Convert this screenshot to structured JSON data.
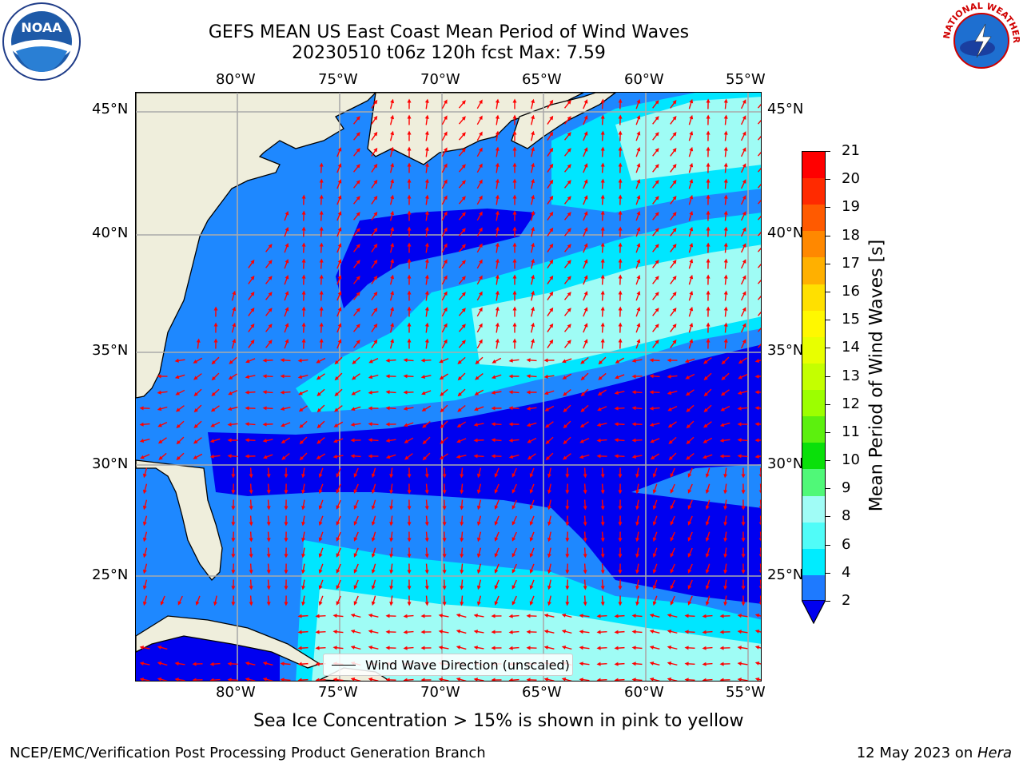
{
  "header": {
    "title_line1": "GEFS MEAN US East Coast Mean Period of Wind Waves",
    "title_line2": "20230510 t06z 120h fcst   Max: 7.59",
    "noaa_logo_text": "NOAA",
    "nws_logo_text": "NATIONAL WEATHER SERVICE"
  },
  "map": {
    "lon_labels": [
      "80°W",
      "75°W",
      "70°W",
      "65°W",
      "60°W",
      "55°W"
    ],
    "lat_labels": [
      "45°N",
      "40°N",
      "35°N",
      "30°N",
      "25°N"
    ],
    "legend_label": "Wind Wave Direction (unscaled)",
    "colors": {
      "land": "#efeedc",
      "p2_4": "#0000f0",
      "p4_6": "#1e88ff",
      "p6_8": "#00e6ff",
      "p8_9": "#9ffcf5",
      "arrow": "#ff0000"
    }
  },
  "colorbar": {
    "label": "Mean Period of Wind Waves [s]",
    "ticks": [
      "21",
      "20",
      "19",
      "18",
      "17",
      "16",
      "15",
      "14",
      "13",
      "12",
      "11",
      "10",
      "9",
      "8",
      "6",
      "4",
      "2"
    ],
    "colors": [
      "#ff0000",
      "#ff2a00",
      "#ff5a00",
      "#ff8800",
      "#ffb000",
      "#ffe000",
      "#fff800",
      "#e8ff00",
      "#c4ff00",
      "#9cff00",
      "#5cf00e",
      "#0ae00a",
      "#50f878",
      "#a0fcf6",
      "#50fcf8",
      "#00ecff",
      "#1e7aff"
    ],
    "extend_color": "#0000f0"
  },
  "notes": {
    "sea_ice": "Sea Ice Concentration > 15% is shown in pink to yellow",
    "producer": "NCEP/EMC/Verification Post Processing Product Generation Branch",
    "date_prefix": "12 May 2023 on ",
    "date_host": "Hera"
  }
}
